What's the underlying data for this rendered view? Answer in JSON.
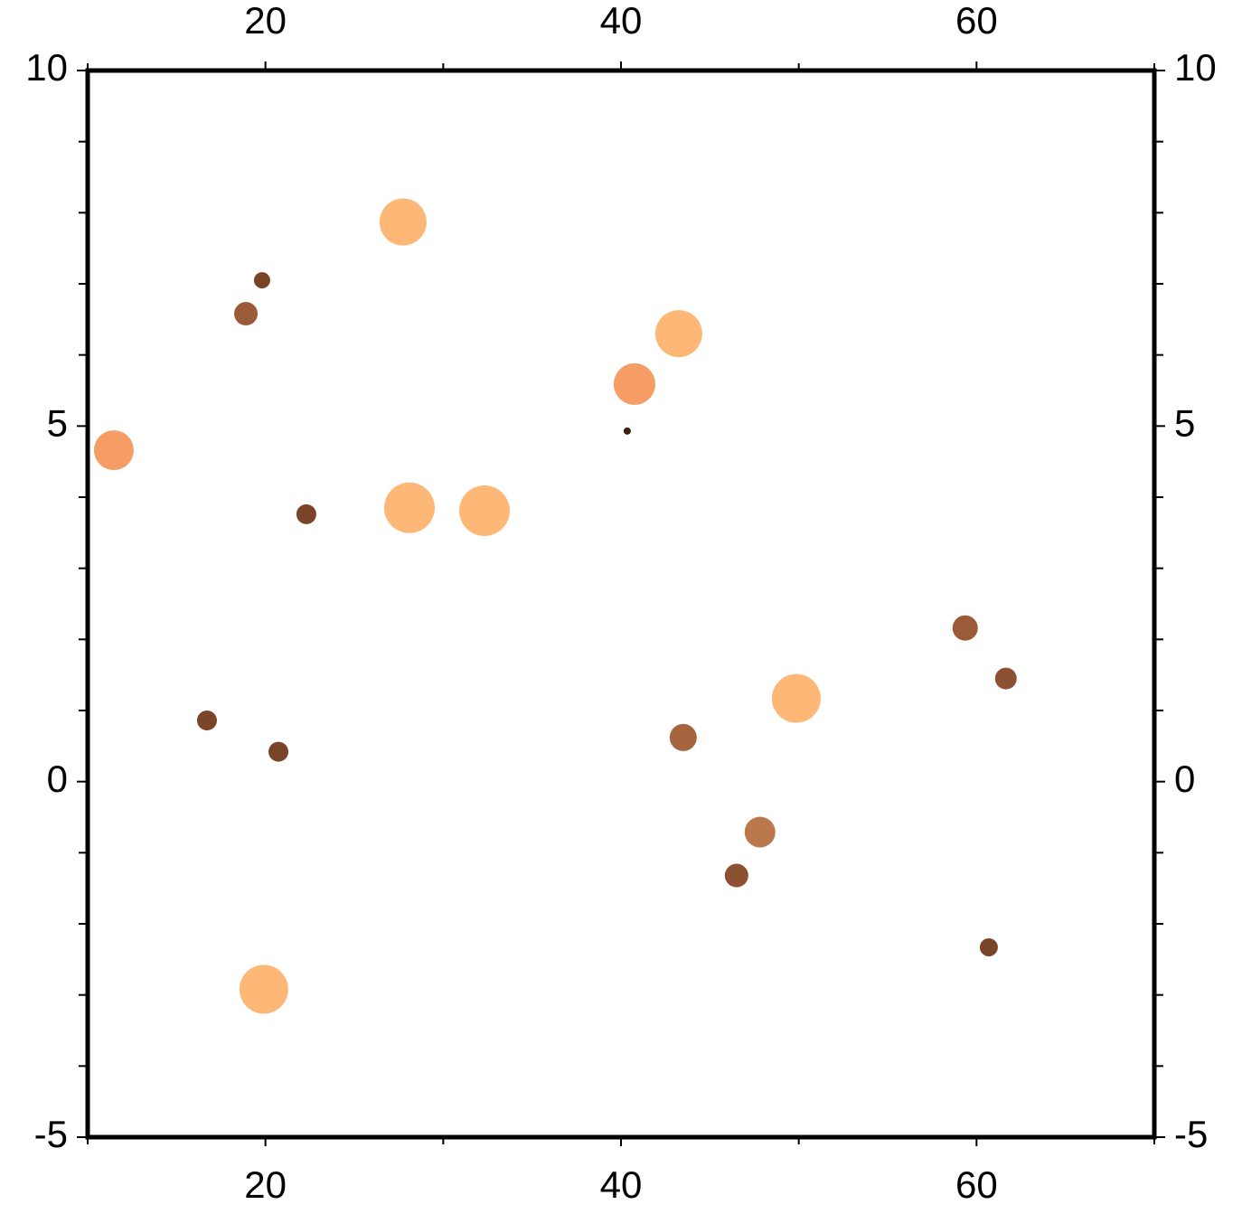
{
  "chart_data": {
    "type": "scatter",
    "x": [
      27.74,
      19.81,
      18.9,
      11.47,
      22.3,
      28.1,
      32.32,
      43.25,
      40.76,
      40.35,
      16.71,
      20.73,
      19.91,
      43.5,
      49.86,
      47.82,
      46.5,
      59.36,
      61.65,
      60.69
    ],
    "y": [
      7.87,
      7.05,
      6.58,
      4.66,
      3.76,
      3.85,
      3.81,
      6.3,
      5.59,
      4.93,
      0.86,
      0.42,
      -2.92,
      0.62,
      1.17,
      -0.71,
      -1.32,
      2.16,
      1.45,
      -2.33
    ],
    "sizes": [
      52,
      18,
      26,
      44,
      22,
      56,
      56,
      52,
      46,
      8,
      22,
      22,
      54,
      30,
      54,
      34,
      26,
      28,
      24,
      20
    ],
    "colors": [
      "#fdb877",
      "#7a4428",
      "#9c5b38",
      "#f59d64",
      "#7a4428",
      "#fdb877",
      "#fdb877",
      "#fdb877",
      "#f59d64",
      "#3d2010",
      "#7a4428",
      "#7a4428",
      "#fdb877",
      "#a8643e",
      "#fdb877",
      "#bb784c",
      "#8c5132",
      "#9c5b38",
      "#8c5132",
      "#7a4428"
    ],
    "xlim": [
      10,
      70
    ],
    "ylim": [
      -5,
      10
    ],
    "xticks": [
      20,
      40,
      60
    ],
    "xminorticks": [
      10,
      30,
      50,
      70
    ],
    "yticks": [
      -5,
      0,
      5,
      10
    ],
    "yminorticks": [
      -4,
      -3,
      -2,
      -1,
      1,
      2,
      3,
      4,
      6,
      7,
      8,
      9
    ]
  }
}
